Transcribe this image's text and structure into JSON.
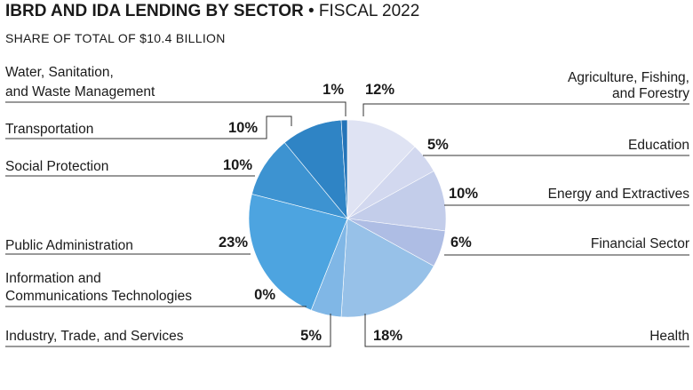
{
  "header": {
    "title_bold": "IBRD AND IDA LENDING BY SECTOR",
    "title_separator": "•",
    "title_regular": "FISCAL 2022",
    "subtitle": "SHARE OF TOTAL OF $10.4 BILLION"
  },
  "colors": {
    "line": "#333333",
    "slice_border": "#ffffff"
  },
  "chart_data": {
    "type": "pie",
    "title": "IBRD AND IDA LENDING BY SECTOR • FISCAL 2022",
    "subtitle": "SHARE OF TOTAL OF $10.4 BILLION",
    "start": "12 o'clock",
    "direction": "clockwise",
    "slices": [
      {
        "name": "Agriculture, Fishing, and Forestry",
        "label_lines": [
          "Agriculture, Fishing,",
          "and Forestry"
        ],
        "value": 12,
        "pct_label": "12%",
        "color": "#dfe3f3",
        "side": "right"
      },
      {
        "name": "Education",
        "label_lines": [
          "Education"
        ],
        "value": 5,
        "pct_label": "5%",
        "color": "#d2d8ef",
        "side": "right"
      },
      {
        "name": "Energy and Extractives",
        "label_lines": [
          "Energy and Extractives"
        ],
        "value": 10,
        "pct_label": "10%",
        "color": "#c3cdea",
        "side": "right"
      },
      {
        "name": "Financial Sector",
        "label_lines": [
          "Financial Sector"
        ],
        "value": 6,
        "pct_label": "6%",
        "color": "#aebde4",
        "side": "right"
      },
      {
        "name": "Health",
        "label_lines": [
          "Health"
        ],
        "value": 18,
        "pct_label": "18%",
        "color": "#97c1e8",
        "side": "right"
      },
      {
        "name": "Industry, Trade, and Services",
        "label_lines": [
          "Industry, Trade, and Services"
        ],
        "value": 5,
        "pct_label": "5%",
        "color": "#80b7e6",
        "side": "left"
      },
      {
        "name": "Information and Communications Technologies",
        "label_lines": [
          "Information and",
          "Communications Technologies"
        ],
        "value": 0,
        "pct_label": "0%",
        "color": "#68aee4",
        "side": "left"
      },
      {
        "name": "Public Administration",
        "label_lines": [
          "Public Administration"
        ],
        "value": 23,
        "pct_label": "23%",
        "color": "#4da4e0",
        "side": "left"
      },
      {
        "name": "Social Protection",
        "label_lines": [
          "Social Protection"
        ],
        "value": 10,
        "pct_label": "10%",
        "color": "#3d93d1",
        "side": "left"
      },
      {
        "name": "Transportation",
        "label_lines": [
          "Transportation"
        ],
        "value": 10,
        "pct_label": "10%",
        "color": "#2f84c5",
        "side": "left"
      },
      {
        "name": "Water, Sanitation, and Waste Management",
        "label_lines": [
          "Water, Sanitation,",
          "and Waste Management"
        ],
        "value": 1,
        "pct_label": "1%",
        "color": "#2474b8",
        "side": "left"
      }
    ]
  }
}
